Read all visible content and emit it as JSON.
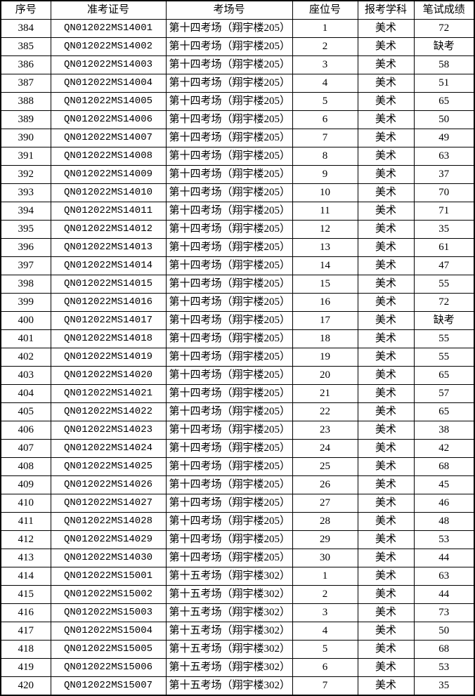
{
  "table": {
    "headers": [
      "序号",
      "准考证号",
      "考场号",
      "座位号",
      "报考学科",
      "笔试成绩"
    ],
    "rows": [
      [
        "384",
        "QN012022MS14001",
        "第十四考场（翔宇楼205）",
        "1",
        "美术",
        "72"
      ],
      [
        "385",
        "QN012022MS14002",
        "第十四考场（翔宇楼205）",
        "2",
        "美术",
        "缺考"
      ],
      [
        "386",
        "QN012022MS14003",
        "第十四考场（翔宇楼205）",
        "3",
        "美术",
        "58"
      ],
      [
        "387",
        "QN012022MS14004",
        "第十四考场（翔宇楼205）",
        "4",
        "美术",
        "51"
      ],
      [
        "388",
        "QN012022MS14005",
        "第十四考场（翔宇楼205）",
        "5",
        "美术",
        "65"
      ],
      [
        "389",
        "QN012022MS14006",
        "第十四考场（翔宇楼205）",
        "6",
        "美术",
        "50"
      ],
      [
        "390",
        "QN012022MS14007",
        "第十四考场（翔宇楼205）",
        "7",
        "美术",
        "49"
      ],
      [
        "391",
        "QN012022MS14008",
        "第十四考场（翔宇楼205）",
        "8",
        "美术",
        "63"
      ],
      [
        "392",
        "QN012022MS14009",
        "第十四考场（翔宇楼205）",
        "9",
        "美术",
        "37"
      ],
      [
        "393",
        "QN012022MS14010",
        "第十四考场（翔宇楼205）",
        "10",
        "美术",
        "70"
      ],
      [
        "394",
        "QN012022MS14011",
        "第十四考场（翔宇楼205）",
        "11",
        "美术",
        "71"
      ],
      [
        "395",
        "QN012022MS14012",
        "第十四考场（翔宇楼205）",
        "12",
        "美术",
        "35"
      ],
      [
        "396",
        "QN012022MS14013",
        "第十四考场（翔宇楼205）",
        "13",
        "美术",
        "61"
      ],
      [
        "397",
        "QN012022MS14014",
        "第十四考场（翔宇楼205）",
        "14",
        "美术",
        "47"
      ],
      [
        "398",
        "QN012022MS14015",
        "第十四考场（翔宇楼205）",
        "15",
        "美术",
        "55"
      ],
      [
        "399",
        "QN012022MS14016",
        "第十四考场（翔宇楼205）",
        "16",
        "美术",
        "72"
      ],
      [
        "400",
        "QN012022MS14017",
        "第十四考场（翔宇楼205）",
        "17",
        "美术",
        "缺考"
      ],
      [
        "401",
        "QN012022MS14018",
        "第十四考场（翔宇楼205）",
        "18",
        "美术",
        "55"
      ],
      [
        "402",
        "QN012022MS14019",
        "第十四考场（翔宇楼205）",
        "19",
        "美术",
        "55"
      ],
      [
        "403",
        "QN012022MS14020",
        "第十四考场（翔宇楼205）",
        "20",
        "美术",
        "65"
      ],
      [
        "404",
        "QN012022MS14021",
        "第十四考场（翔宇楼205）",
        "21",
        "美术",
        "57"
      ],
      [
        "405",
        "QN012022MS14022",
        "第十四考场（翔宇楼205）",
        "22",
        "美术",
        "65"
      ],
      [
        "406",
        "QN012022MS14023",
        "第十四考场（翔宇楼205）",
        "23",
        "美术",
        "38"
      ],
      [
        "407",
        "QN012022MS14024",
        "第十四考场（翔宇楼205）",
        "24",
        "美术",
        "42"
      ],
      [
        "408",
        "QN012022MS14025",
        "第十四考场（翔宇楼205）",
        "25",
        "美术",
        "68"
      ],
      [
        "409",
        "QN012022MS14026",
        "第十四考场（翔宇楼205）",
        "26",
        "美术",
        "45"
      ],
      [
        "410",
        "QN012022MS14027",
        "第十四考场（翔宇楼205）",
        "27",
        "美术",
        "46"
      ],
      [
        "411",
        "QN012022MS14028",
        "第十四考场（翔宇楼205）",
        "28",
        "美术",
        "48"
      ],
      [
        "412",
        "QN012022MS14029",
        "第十四考场（翔宇楼205）",
        "29",
        "美术",
        "53"
      ],
      [
        "413",
        "QN012022MS14030",
        "第十四考场（翔宇楼205）",
        "30",
        "美术",
        "44"
      ],
      [
        "414",
        "QN012022MS15001",
        "第十五考场（翔宇楼302）",
        "1",
        "美术",
        "63"
      ],
      [
        "415",
        "QN012022MS15002",
        "第十五考场（翔宇楼302）",
        "2",
        "美术",
        "44"
      ],
      [
        "416",
        "QN012022MS15003",
        "第十五考场（翔宇楼302）",
        "3",
        "美术",
        "73"
      ],
      [
        "417",
        "QN012022MS15004",
        "第十五考场（翔宇楼302）",
        "4",
        "美术",
        "50"
      ],
      [
        "418",
        "QN012022MS15005",
        "第十五考场（翔宇楼302）",
        "5",
        "美术",
        "68"
      ],
      [
        "419",
        "QN012022MS15006",
        "第十五考场（翔宇楼302）",
        "6",
        "美术",
        "53"
      ],
      [
        "420",
        "QN012022MS15007",
        "第十五考场（翔宇楼302）",
        "7",
        "美术",
        "35"
      ]
    ],
    "colors": {
      "border": "#000000",
      "text": "#000000",
      "background": "#ffffff"
    }
  }
}
